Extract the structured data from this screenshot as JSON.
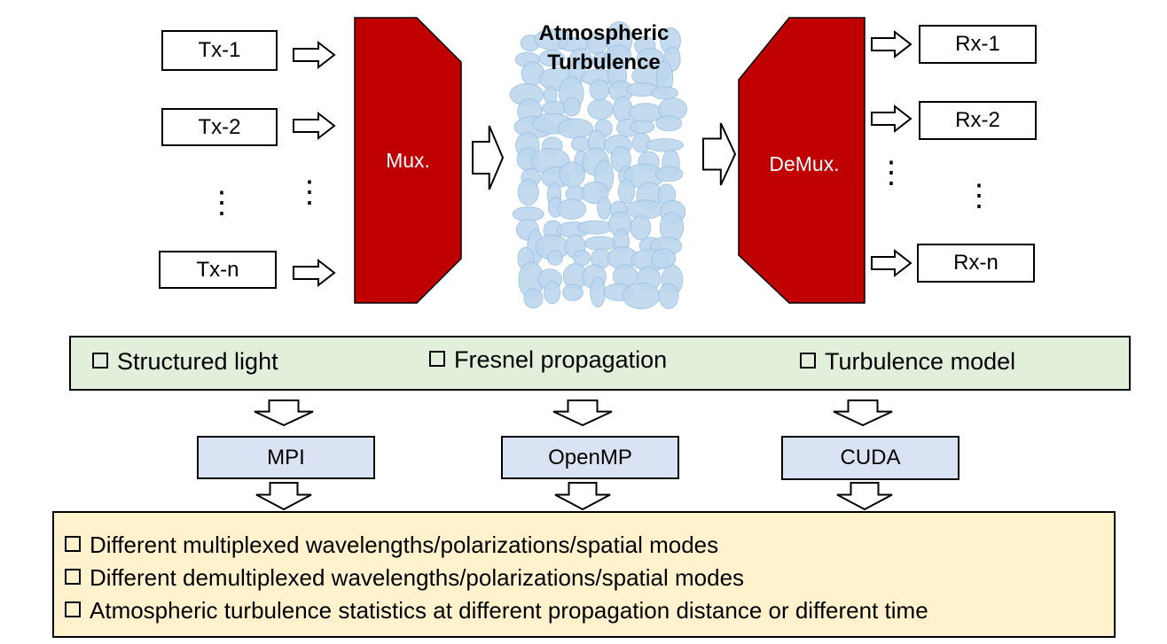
{
  "transmitters": [
    "Tx-1",
    "Tx-2",
    "Tx-n"
  ],
  "receivers": [
    "Rx-1",
    "Rx-2",
    "Rx-n"
  ],
  "mux_label": "Mux.",
  "demux_label": "DeMux.",
  "channel": {
    "line1": "Atmospheric",
    "line2": "Turbulence"
  },
  "ellipsis": "⋮",
  "models": [
    "Structured light",
    "Fresnel propagation",
    "Turbulence model"
  ],
  "frameworks": [
    "MPI",
    "OpenMP",
    "CUDA"
  ],
  "outputs": [
    "Different multiplexed wavelengths/polarizations/spatial modes",
    "Different demultiplexed wavelengths/polarizations/spatial modes",
    "Atmospheric turbulence statistics at different propagation distance or different time"
  ],
  "colors": {
    "mux_fill": "#c00000",
    "bubble_fill": "#bdd7ee",
    "bubble_stroke": "#9dc3e6",
    "model_box": "#e2efda",
    "framework_box": "#dae3f3",
    "output_box": "#fff2cc"
  }
}
